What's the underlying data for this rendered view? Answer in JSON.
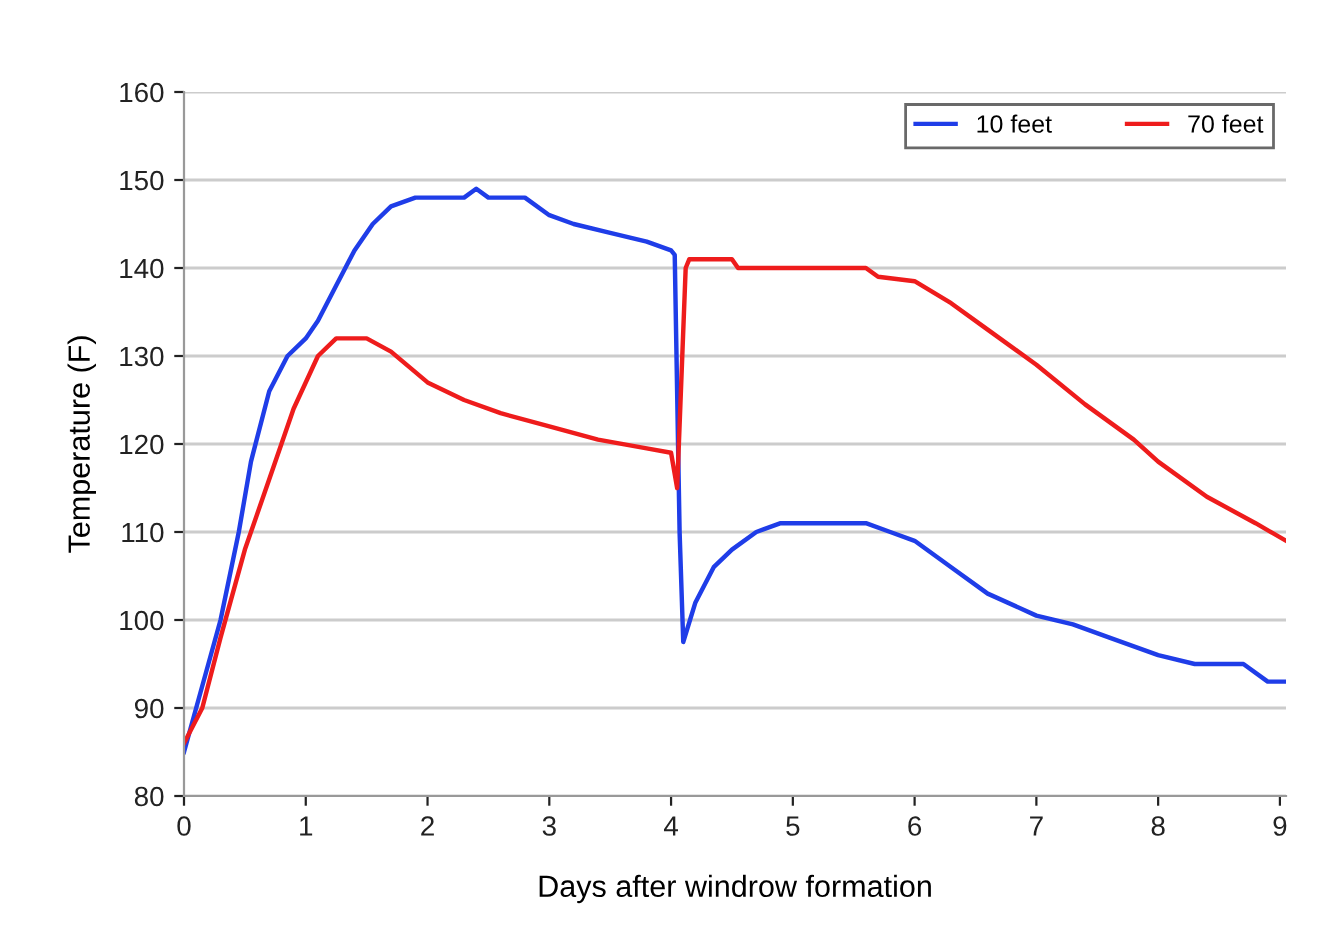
{
  "chart_data": {
    "type": "line",
    "xlabel": "Days after windrow formation",
    "ylabel": "Temperature (F)",
    "xlim": [
      0,
      9.05
    ],
    "xticks": [
      0,
      1,
      2,
      3,
      4,
      5,
      6,
      7,
      8,
      9
    ],
    "ylim": [
      80,
      160
    ],
    "yticks": [
      80,
      90,
      100,
      110,
      120,
      130,
      140,
      150,
      160
    ],
    "grid": "y",
    "legend": "top right",
    "series": [
      {
        "name": "10 feet",
        "color": "#1f3de8",
        "x": [
          0,
          0.1,
          0.3,
          0.45,
          0.55,
          0.7,
          0.85,
          1,
          1.1,
          1.25,
          1.4,
          1.55,
          1.7,
          1.9,
          2.3,
          2.4,
          2.5,
          2.8,
          3.0,
          3.2,
          3.5,
          3.8,
          4.0,
          4.03,
          4.07,
          4.1,
          4.2,
          4.35,
          4.5,
          4.7,
          4.9,
          5.6,
          5.8,
          6.0,
          6.3,
          6.6,
          7.0,
          7.3,
          7.6,
          8.0,
          8.3,
          8.7,
          8.9,
          9.05
        ],
        "values": [
          85,
          90,
          100,
          110,
          118,
          126,
          130,
          132,
          134,
          138,
          142,
          145,
          147,
          148,
          148,
          149,
          148,
          148,
          146,
          145,
          144,
          143,
          142,
          141.5,
          110,
          97.5,
          102,
          106,
          108,
          110,
          111,
          111,
          110,
          109,
          106,
          103,
          100.5,
          99.5,
          98,
          96,
          95,
          95,
          93,
          93
        ]
      },
      {
        "name": "70 feet",
        "color": "#ee1c1c",
        "x": [
          0,
          0.15,
          0.3,
          0.5,
          0.7,
          0.9,
          1.1,
          1.25,
          1.5,
          1.7,
          2.0,
          2.3,
          2.6,
          3.0,
          3.4,
          3.8,
          4.0,
          4.05,
          4.12,
          4.15,
          4.5,
          4.55,
          5.6,
          5.7,
          6.0,
          6.3,
          6.6,
          7.0,
          7.4,
          7.8,
          8.0,
          8.4,
          8.8,
          9.05
        ],
        "values": [
          86,
          90,
          98,
          108,
          116,
          124,
          130,
          132,
          132,
          130.5,
          127,
          125,
          123.5,
          122,
          120.5,
          119.5,
          119,
          115,
          140,
          141,
          141,
          140,
          140,
          139,
          138.5,
          136,
          133,
          129,
          124.5,
          120.5,
          118,
          114,
          111,
          109
        ]
      }
    ]
  }
}
